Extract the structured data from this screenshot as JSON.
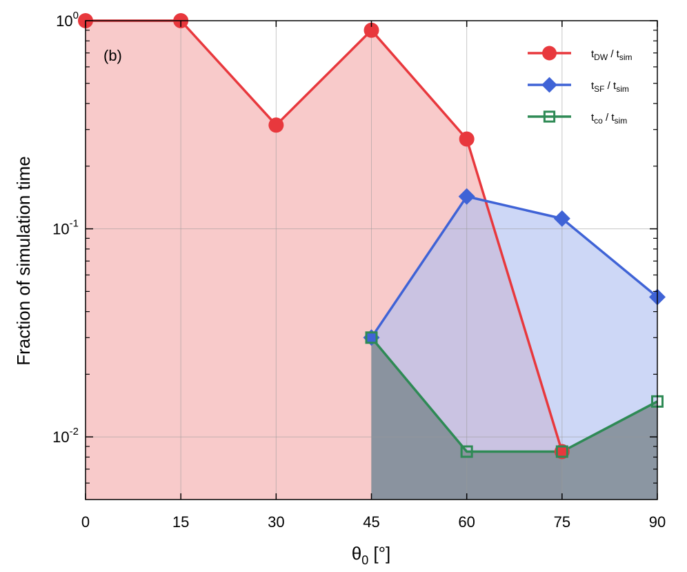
{
  "chart_data": {
    "type": "line",
    "annotation": "(b)",
    "xlabel": {
      "main": "θ",
      "sub": "0",
      "unit": " [°]"
    },
    "ylabel": "Fraction of simulation time",
    "xlim": [
      0,
      90
    ],
    "ylim": [
      0.005,
      1.0
    ],
    "y_scale": "log",
    "grid": true,
    "x_ticks": [
      0,
      15,
      30,
      45,
      60,
      75,
      90
    ],
    "x_tick_labels": [
      "0",
      "15",
      "30",
      "45",
      "60",
      "75",
      "90"
    ],
    "y_ticks": [
      {
        "value": 1,
        "base": "10",
        "exp": "0"
      },
      {
        "value": 0.1,
        "base": "10",
        "exp": "-1"
      },
      {
        "value": 0.01,
        "base": "10",
        "exp": "-2"
      }
    ],
    "legend_position": "top-right",
    "series": [
      {
        "key": "dw",
        "name": "t_DW / t_sim",
        "legend": {
          "a": "t",
          "a_sub": "DW",
          "sep": " / t",
          "b_sub": "sim"
        },
        "color": "#e8383d",
        "fill": "#f4a9a9",
        "marker": "circle",
        "x": [
          0,
          15,
          30,
          45,
          60,
          75
        ],
        "y": [
          1.0,
          1.0,
          0.315,
          0.9,
          0.27,
          0.0085
        ]
      },
      {
        "key": "sf",
        "name": "t_SF / t_sim",
        "legend": {
          "a": "t",
          "a_sub": "SF",
          "sep": " / t",
          "b_sub": "sim"
        },
        "color": "#3f63d6",
        "fill": "#aebef0",
        "marker": "diamond",
        "x": [
          45,
          60,
          75,
          90
        ],
        "y": [
          0.03,
          0.143,
          0.112,
          0.047
        ]
      },
      {
        "key": "co",
        "name": "t_co / t_sim",
        "legend": {
          "a": "t",
          "a_sub": "co",
          "sep": " / t",
          "b_sub": "sim"
        },
        "color": "#2e8a55",
        "fill": "#7f8b93",
        "marker": "square-open",
        "x": [
          45,
          60,
          75,
          90
        ],
        "y": [
          0.03,
          0.0085,
          0.0085,
          0.0148
        ]
      }
    ]
  }
}
